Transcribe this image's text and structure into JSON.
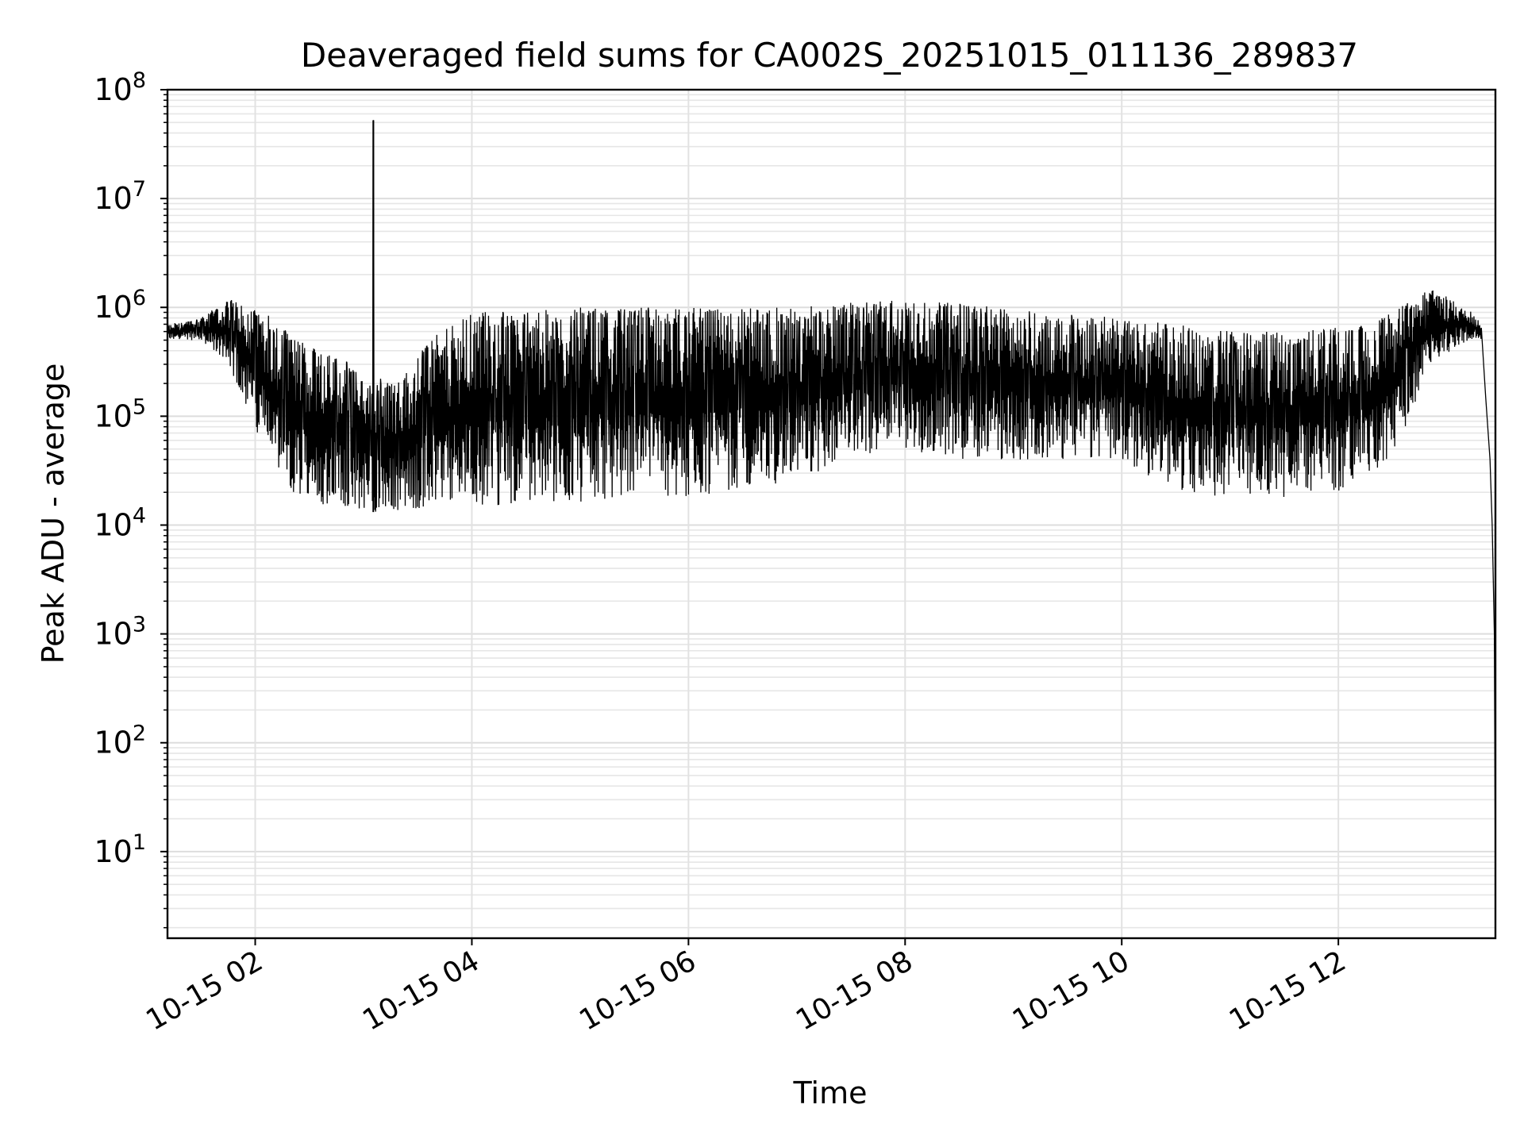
{
  "chart_data": {
    "type": "line",
    "title": "Deaveraged field sums for CA002S_20251015_011136_289837",
    "xlabel": "Time",
    "ylabel": "Peak ADU - average",
    "yscale": "log",
    "ylim": [
      1.6,
      100000000
    ],
    "xlim_hours": [
      1.19,
      13.45
    ],
    "grid": true,
    "x_ticks": [
      {
        "hour": 2,
        "label": "10-15 02"
      },
      {
        "hour": 4,
        "label": "10-15 04"
      },
      {
        "hour": 6,
        "label": "10-15 06"
      },
      {
        "hour": 8,
        "label": "10-15 08"
      },
      {
        "hour": 10,
        "label": "10-15 10"
      },
      {
        "hour": 12,
        "label": "10-15 12"
      }
    ],
    "y_ticks": [
      {
        "exp": 1,
        "base": "10",
        "sup": "1"
      },
      {
        "exp": 2,
        "base": "10",
        "sup": "2"
      },
      {
        "exp": 3,
        "base": "10",
        "sup": "3"
      },
      {
        "exp": 4,
        "base": "10",
        "sup": "4"
      },
      {
        "exp": 5,
        "base": "10",
        "sup": "5"
      },
      {
        "exp": 6,
        "base": "10",
        "sup": "6"
      },
      {
        "exp": 7,
        "base": "10",
        "sup": "7"
      },
      {
        "exp": 8,
        "base": "10",
        "sup": "8"
      }
    ],
    "series": [
      {
        "name": "Peak ADU - average",
        "color": "#000000",
        "envelope_upper": [
          [
            1.19,
            700000
          ],
          [
            1.5,
            800000
          ],
          [
            1.75,
            1200000
          ],
          [
            2.05,
            1000000
          ],
          [
            2.3,
            600000
          ],
          [
            2.7,
            400000
          ],
          [
            3.0,
            250000
          ],
          [
            3.3,
            200000
          ],
          [
            3.6,
            500000
          ],
          [
            4.0,
            900000
          ],
          [
            5.0,
            1000000
          ],
          [
            6.0,
            1000000
          ],
          [
            7.0,
            1000000
          ],
          [
            7.9,
            1200000
          ],
          [
            8.5,
            1100000
          ],
          [
            9.3,
            900000
          ],
          [
            10.0,
            800000
          ],
          [
            10.5,
            700000
          ],
          [
            11.0,
            600000
          ],
          [
            11.5,
            600000
          ],
          [
            12.3,
            700000
          ],
          [
            12.85,
            1500000
          ],
          [
            13.2,
            1000000
          ],
          [
            13.32,
            700000
          ]
        ],
        "envelope_lower": [
          [
            1.19,
            500000
          ],
          [
            1.5,
            500000
          ],
          [
            1.75,
            300000
          ],
          [
            2.05,
            60000
          ],
          [
            2.3,
            18000
          ],
          [
            2.7,
            15000
          ],
          [
            3.0,
            13000
          ],
          [
            3.5,
            14000
          ],
          [
            4.0,
            15000
          ],
          [
            5.0,
            16000
          ],
          [
            6.0,
            18000
          ],
          [
            7.0,
            25000
          ],
          [
            7.9,
            50000
          ],
          [
            8.5,
            40000
          ],
          [
            9.0,
            40000
          ],
          [
            9.5,
            40000
          ],
          [
            10.0,
            40000
          ],
          [
            10.5,
            20000
          ],
          [
            11.0,
            18000
          ],
          [
            11.5,
            18000
          ],
          [
            12.0,
            20000
          ],
          [
            12.5,
            40000
          ],
          [
            12.85,
            300000
          ],
          [
            13.2,
            500000
          ],
          [
            13.32,
            500000
          ]
        ],
        "spikes": [
          {
            "hour": 3.09,
            "value": 52000000
          }
        ],
        "tail": [
          [
            13.32,
            650000
          ],
          [
            13.36,
            150000
          ],
          [
            13.4,
            40000
          ],
          [
            13.42,
            10000
          ],
          [
            13.44,
            1000
          ],
          [
            13.45,
            3.8
          ]
        ]
      }
    ]
  }
}
